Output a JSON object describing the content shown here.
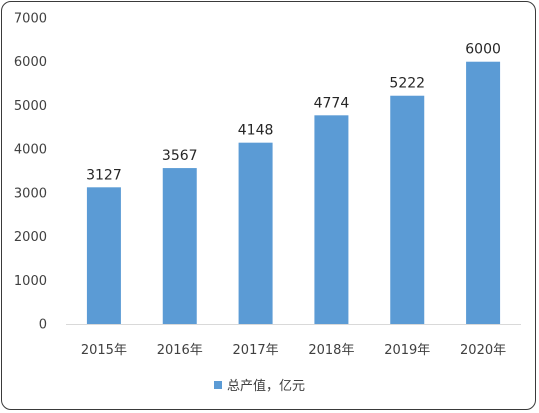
{
  "chart_data": {
    "type": "bar",
    "categories": [
      "2015年",
      "2016年",
      "2017年",
      "2018年",
      "2019年",
      "2020年"
    ],
    "series": [
      {
        "name": "总产值，亿元",
        "values": [
          3127,
          3567,
          4148,
          4774,
          5222,
          6000
        ]
      }
    ],
    "ylim": [
      0,
      7000
    ],
    "yticks": [
      0,
      1000,
      2000,
      3000,
      4000,
      5000,
      6000,
      7000
    ],
    "grid": false,
    "legend_position": "bottom",
    "bar_color": "#5b9bd5",
    "axis_color": "#d9d9d9"
  }
}
